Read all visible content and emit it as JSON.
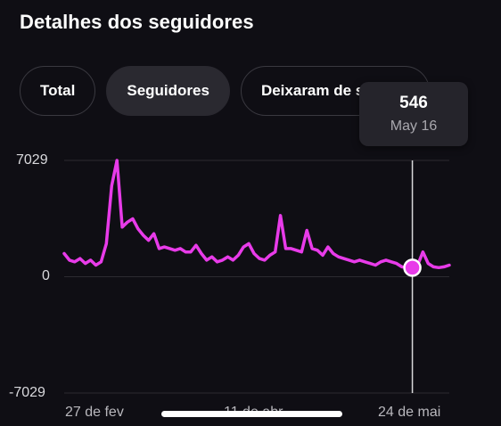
{
  "header": {
    "title": "Detalhes dos seguidores"
  },
  "tabs": [
    {
      "label": "Total",
      "active": false
    },
    {
      "label": "Seguidores",
      "active": true
    },
    {
      "label": "Deixaram de seguir",
      "active": false
    }
  ],
  "tooltip": {
    "value": "546",
    "date": "May 16"
  },
  "colors": {
    "line": "#e83be9",
    "background": "#0f0e14",
    "grid": "#2c2b31",
    "cursor": "#d9d9dc"
  },
  "chart_data": {
    "type": "line",
    "ylim": [
      -7029,
      7029
    ],
    "y_ticks": [
      "7029",
      "0",
      "-7029"
    ],
    "x_ticks": [
      "27 de fev",
      "11 de abr",
      "24 de mai"
    ],
    "series": [
      {
        "values": [
          1400,
          1000,
          900,
          1100,
          800,
          1000,
          700,
          900,
          2000,
          5500,
          7029,
          3000,
          3300,
          3500,
          2900,
          2500,
          2200,
          2600,
          1700,
          1800,
          1700,
          1600,
          1700,
          1500,
          1500,
          1900,
          1400,
          1000,
          1200,
          900,
          1000,
          1200,
          1000,
          1300,
          1800,
          2000,
          1400,
          1100,
          1000,
          1300,
          1500,
          3700,
          1700,
          1700,
          1600,
          1500,
          2800,
          1700,
          1600,
          1300,
          1800,
          1400,
          1200,
          1100,
          1000,
          900,
          1000,
          900,
          800,
          700,
          900,
          1000,
          900,
          800,
          600,
          550,
          546,
          700,
          1500,
          800,
          600,
          550,
          600,
          700
        ],
        "highlight_index": 66
      }
    ]
  }
}
